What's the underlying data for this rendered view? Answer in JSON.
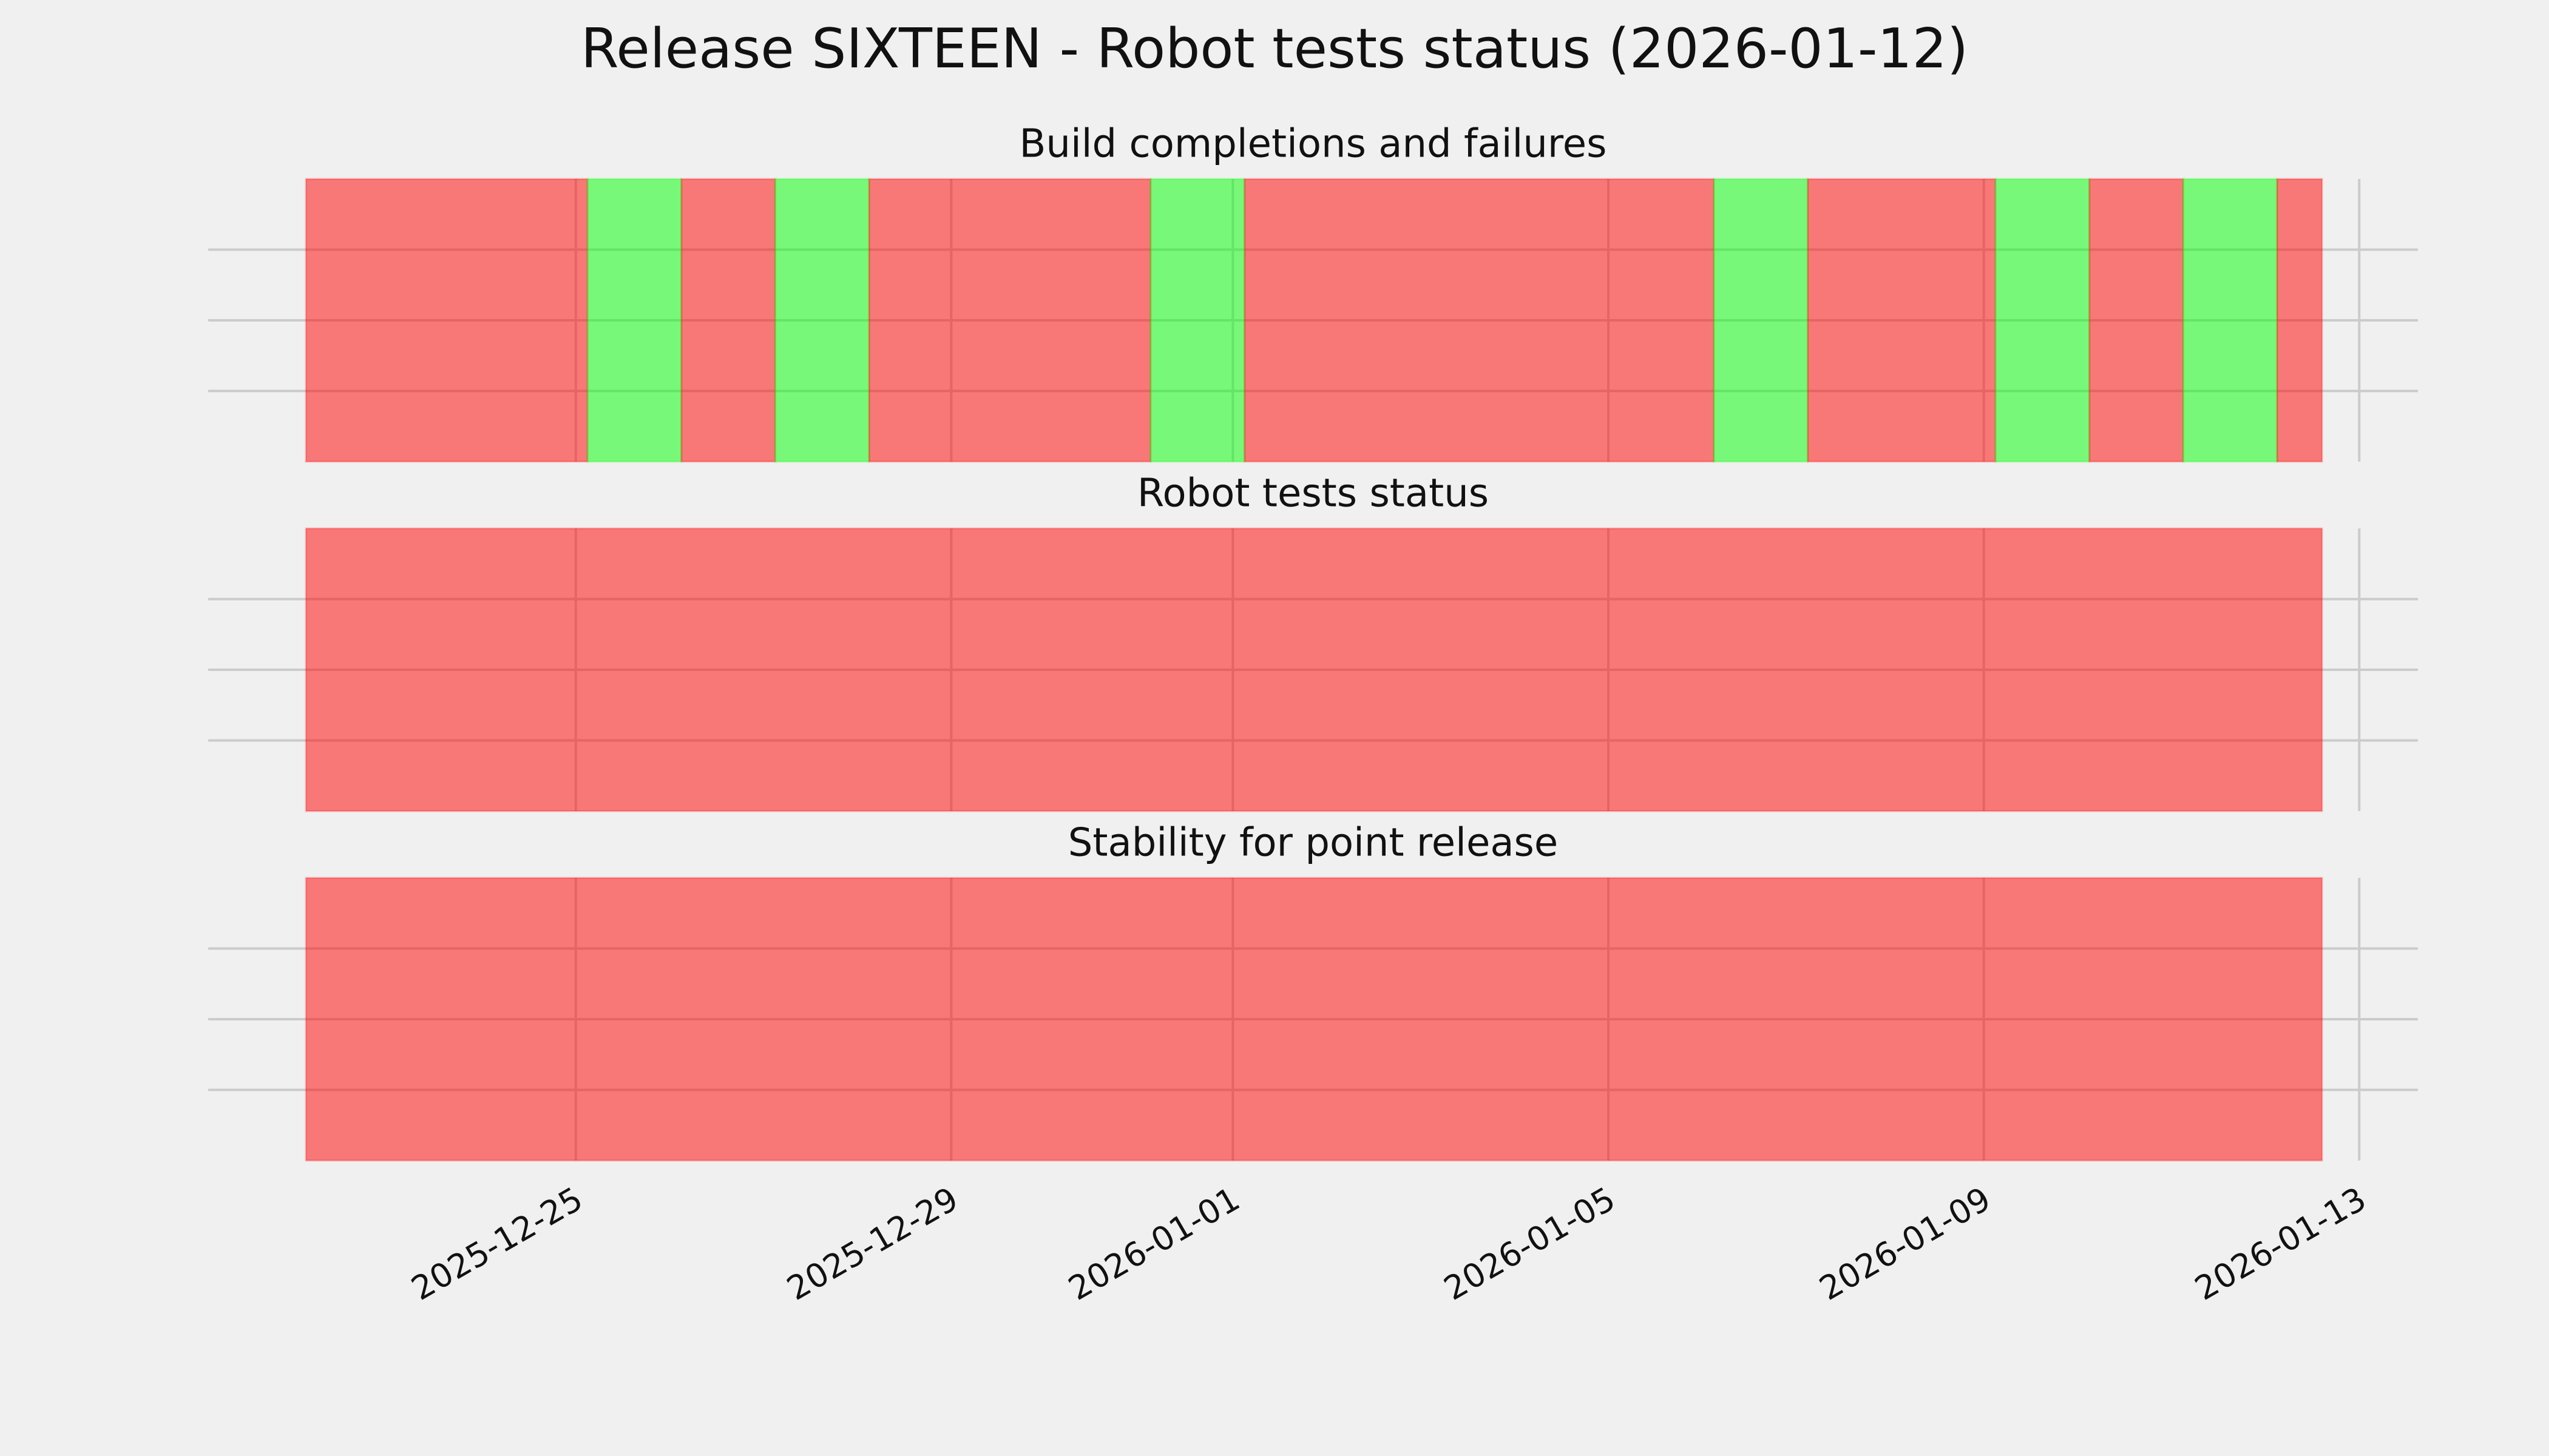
{
  "title": "Release SIXTEEN - Robot tests status (2026-01-12)",
  "chart_data": [
    {
      "type": "timeline",
      "title": "Build completions and failures",
      "segments": [
        {
          "start": "2025-12-22T03:00",
          "end": "2025-12-25T03:00",
          "color": "#ff0000"
        },
        {
          "start": "2025-12-25T03:00",
          "end": "2025-12-26T03:00",
          "color": "#00ff00"
        },
        {
          "start": "2025-12-26T03:00",
          "end": "2025-12-27T03:00",
          "color": "#ff0000"
        },
        {
          "start": "2025-12-27T03:00",
          "end": "2025-12-28T03:00",
          "color": "#00ff00"
        },
        {
          "start": "2025-12-28T03:00",
          "end": "2025-12-31T03:00",
          "color": "#ff0000"
        },
        {
          "start": "2025-12-31T03:00",
          "end": "2026-01-01T03:00",
          "color": "#00ff00"
        },
        {
          "start": "2026-01-01T03:00",
          "end": "2026-01-06T03:00",
          "color": "#ff0000"
        },
        {
          "start": "2026-01-06T03:00",
          "end": "2026-01-07T03:00",
          "color": "#00ff00"
        },
        {
          "start": "2026-01-07T03:00",
          "end": "2026-01-09T03:00",
          "color": "#ff0000"
        },
        {
          "start": "2026-01-09T03:00",
          "end": "2026-01-10T03:00",
          "color": "#00ff00"
        },
        {
          "start": "2026-01-10T03:00",
          "end": "2026-01-11T03:00",
          "color": "#ff0000"
        },
        {
          "start": "2026-01-11T03:00",
          "end": "2026-01-12T03:00",
          "color": "#00ff00"
        },
        {
          "start": "2026-01-12T03:00",
          "end": "2026-01-12T14:30",
          "color": "#ff0000"
        }
      ],
      "xlim": [
        "2025-12-21T02:00",
        "2026-01-13T15:00"
      ],
      "ylim": [
        0,
        1
      ],
      "yticks": [
        0.25,
        0.5,
        0.75
      ]
    },
    {
      "type": "timeline",
      "title": "Robot tests status",
      "segments": [
        {
          "start": "2025-12-22T03:00",
          "end": "2026-01-12T14:30",
          "color": "#ff0000"
        }
      ],
      "xlim": [
        "2025-12-21T02:00",
        "2026-01-13T15:00"
      ],
      "ylim": [
        0,
        1
      ],
      "yticks": [
        0.25,
        0.5,
        0.75
      ]
    },
    {
      "type": "timeline",
      "title": "Stability for point release",
      "segments": [
        {
          "start": "2025-12-22T03:00",
          "end": "2026-01-12T14:30",
          "color": "#ff0000"
        }
      ],
      "xlim": [
        "2025-12-21T02:00",
        "2026-01-13T15:00"
      ],
      "ylim": [
        0,
        1
      ],
      "yticks": [
        0.25,
        0.5,
        0.75
      ],
      "xticks": [
        "2025-12-25",
        "2025-12-29",
        "2026-01-01",
        "2026-01-05",
        "2026-01-09",
        "2026-01-13"
      ]
    }
  ]
}
